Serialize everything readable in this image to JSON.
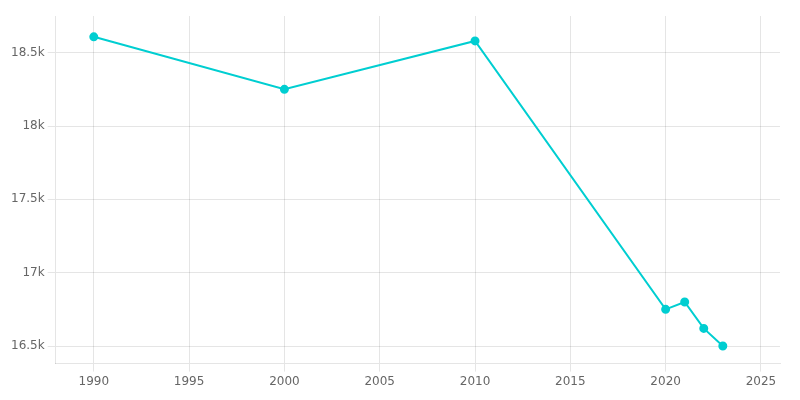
{
  "chart_data": {
    "type": "line",
    "x": [
      1990,
      2000,
      2010,
      2020,
      2021,
      2022,
      2023
    ],
    "values": [
      18608,
      18250,
      18580,
      16750,
      16800,
      16620,
      16500
    ],
    "color": "#00CED1",
    "marker": "circle",
    "line_style": "solid",
    "xlim": [
      1988,
      2026
    ],
    "xticks": [
      1990,
      1995,
      2000,
      2005,
      2010,
      2015,
      2020,
      2025
    ],
    "ylim": [
      16380,
      18750
    ],
    "yticks": [
      {
        "value": 16500,
        "label": "16.5k"
      },
      {
        "value": 17000,
        "label": "17k"
      },
      {
        "value": 17500,
        "label": "17.5k"
      },
      {
        "value": 18000,
        "label": "18k"
      },
      {
        "value": 18500,
        "label": "18.5k"
      }
    ],
    "grid": true
  }
}
